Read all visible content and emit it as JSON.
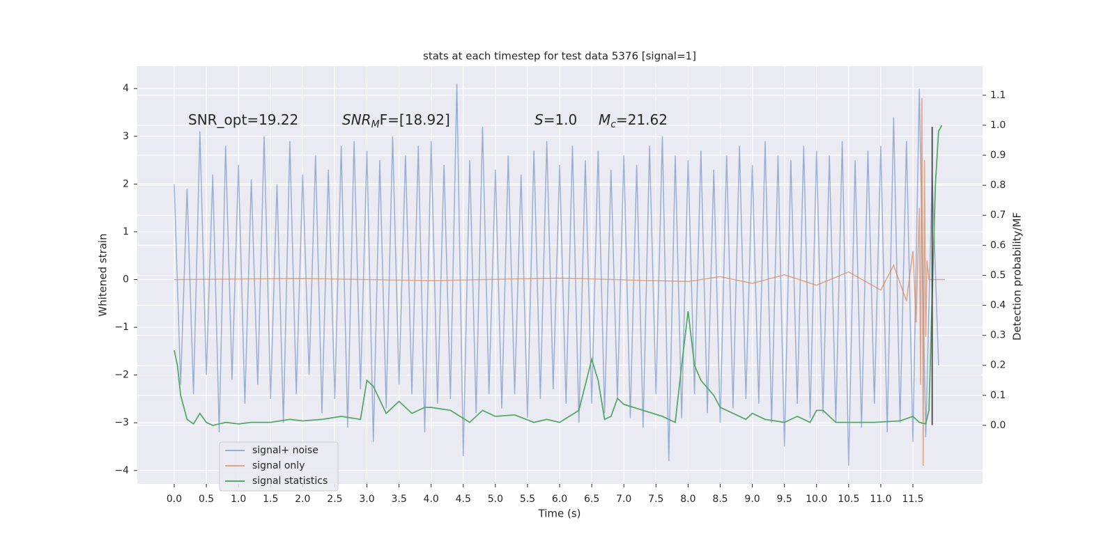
{
  "chart_data": {
    "type": "line",
    "title": "stats at each timestep for test data 5376 [signal=1]",
    "x_label": "Time (s)",
    "y_label": "Whitened strain",
    "y2_label": "Detection probability/MF",
    "xlim": [
      -0.575,
      12.585
    ],
    "ylim": [
      -4.28,
      4.47
    ],
    "y2lim": [
      -0.195,
      1.197
    ],
    "xticks": [
      {
        "value": 0,
        "label": "0.0"
      },
      {
        "value": 0.5,
        "label": "0.5"
      },
      {
        "value": 1,
        "label": "1.0"
      },
      {
        "value": 1.5,
        "label": "1.5"
      },
      {
        "value": 2,
        "label": "2.0"
      },
      {
        "value": 2.5,
        "label": "2.5"
      },
      {
        "value": 3,
        "label": "3.0"
      },
      {
        "value": 3.5,
        "label": "3.5"
      },
      {
        "value": 4,
        "label": "4.0"
      },
      {
        "value": 4.5,
        "label": "4.5"
      },
      {
        "value": 5,
        "label": "5.0"
      },
      {
        "value": 5.5,
        "label": "5.5"
      },
      {
        "value": 6,
        "label": "6.0"
      },
      {
        "value": 6.5,
        "label": "6.5"
      },
      {
        "value": 7,
        "label": "7.0"
      },
      {
        "value": 7.5,
        "label": "7.5"
      },
      {
        "value": 8,
        "label": "8.0"
      },
      {
        "value": 8.5,
        "label": "8.5"
      },
      {
        "value": 9,
        "label": "9.0"
      },
      {
        "value": 9.5,
        "label": "9.5"
      },
      {
        "value": 10,
        "label": "10.0"
      },
      {
        "value": 10.5,
        "label": "10.5"
      },
      {
        "value": 11,
        "label": "11.0"
      },
      {
        "value": 11.5,
        "label": "11.5"
      }
    ],
    "yticks": [
      {
        "value": -4,
        "label": "−4"
      },
      {
        "value": -3,
        "label": "−3"
      },
      {
        "value": -2,
        "label": "−2"
      },
      {
        "value": -1,
        "label": "−1"
      },
      0,
      1,
      2,
      3,
      4
    ],
    "y2ticks": [
      {
        "value": 0,
        "label": "0.0"
      },
      {
        "value": 0.1,
        "label": "0.1"
      },
      {
        "value": 0.2,
        "label": "0.2"
      },
      {
        "value": 0.3,
        "label": "0.3"
      },
      {
        "value": 0.4,
        "label": "0.4"
      },
      {
        "value": 0.5,
        "label": "0.5"
      },
      {
        "value": 0.6,
        "label": "0.6"
      },
      {
        "value": 0.7,
        "label": "0.7"
      },
      {
        "value": 0.8,
        "label": "0.8"
      },
      {
        "value": 0.9,
        "label": "0.9"
      },
      {
        "value": 1,
        "label": "1.0"
      },
      {
        "value": 1.1,
        "label": "1.1"
      }
    ],
    "grid": true,
    "legend_position": "lower left",
    "annotations": [
      [
        {
          "text": "SNR_opt=19.22",
          "style": "normal"
        }
      ],
      [
        {
          "text": "SNR",
          "style": "italic"
        },
        {
          "text": "M",
          "style": "sub"
        },
        {
          "text": "F=[18.92]",
          "style": "normal"
        }
      ],
      [
        {
          "text": "S",
          "style": "italic"
        },
        {
          "text": "=1.0",
          "style": "normal"
        }
      ],
      [
        {
          "text": "M",
          "style": "italic"
        },
        {
          "text": "c",
          "style": "sub"
        },
        {
          "text": "=21.62",
          "style": "normal"
        }
      ]
    ],
    "vlines": [
      {
        "x": 11.8,
        "ymin": -3.05,
        "ymax": 3.2,
        "color": "#444444"
      }
    ],
    "series": [
      {
        "name": "signal+ noise",
        "color": "#4c72b0",
        "opacity": 0.5,
        "x": [
          0,
          0.1,
          0.2,
          0.3,
          0.4,
          0.5,
          0.6,
          0.7,
          0.8,
          0.9,
          1,
          1.1,
          1.2,
          1.3,
          1.4,
          1.5,
          1.6,
          1.7,
          1.8,
          1.9,
          2,
          2.1,
          2.2,
          2.3,
          2.4,
          2.5,
          2.6,
          2.7,
          2.8,
          2.9,
          3,
          3.1,
          3.2,
          3.3,
          3.4,
          3.5,
          3.6,
          3.7,
          3.8,
          3.9,
          4,
          4.1,
          4.2,
          4.3,
          4.4,
          4.5,
          4.6,
          4.7,
          4.8,
          4.9,
          5,
          5.1,
          5.2,
          5.3,
          5.4,
          5.5,
          5.6,
          5.7,
          5.8,
          5.9,
          6,
          6.1,
          6.2,
          6.3,
          6.4,
          6.5,
          6.6,
          6.7,
          6.8,
          6.9,
          7,
          7.1,
          7.2,
          7.3,
          7.4,
          7.5,
          7.6,
          7.7,
          7.8,
          7.9,
          8,
          8.1,
          8.2,
          8.3,
          8.4,
          8.5,
          8.6,
          8.7,
          8.8,
          8.9,
          9,
          9.1,
          9.2,
          9.3,
          9.4,
          9.5,
          9.6,
          9.7,
          9.8,
          9.9,
          10,
          10.1,
          10.2,
          10.3,
          10.4,
          10.5,
          10.6,
          10.7,
          10.8,
          10.9,
          11,
          11.1,
          11.2,
          11.3,
          11.4,
          11.5,
          11.6,
          11.7,
          11.8,
          11.9
        ],
        "values": [
          2.0,
          -2.2,
          1.9,
          -2.4,
          3.1,
          -2.0,
          2.2,
          -3.2,
          2.8,
          -2.1,
          2.4,
          -2.6,
          2.1,
          -2.2,
          3.0,
          -2.5,
          2.0,
          -3.0,
          2.9,
          -2.4,
          2.2,
          -2.0,
          2.6,
          -2.8,
          2.3,
          -2.5,
          2.8,
          -3.1,
          2.9,
          -2.3,
          2.7,
          -3.4,
          2.5,
          -2.7,
          3.0,
          -2.2,
          2.6,
          -2.4,
          2.8,
          -3.2,
          2.9,
          -2.6,
          2.4,
          -2.5,
          4.1,
          -3.7,
          2.5,
          -2.8,
          3.2,
          -2.4,
          2.3,
          -2.7,
          2.6,
          -2.4,
          2.2,
          -2.9,
          2.7,
          -2.5,
          2.9,
          -2.3,
          2.4,
          -2.6,
          2.8,
          -3.0,
          2.5,
          -2.6,
          2.7,
          -2.8,
          2.3,
          -2.5,
          2.6,
          -2.9,
          2.4,
          -3.1,
          2.8,
          -2.4,
          3.0,
          -3.8,
          2.6,
          -2.9,
          2.5,
          -2.4,
          2.7,
          -2.8,
          2.3,
          -3.0,
          2.6,
          -2.7,
          2.8,
          -2.5,
          2.4,
          -2.6,
          2.9,
          -3.0,
          2.6,
          -3.5,
          2.5,
          -2.6,
          2.8,
          -2.9,
          2.7,
          -2.8,
          2.6,
          -3.0,
          2.9,
          -3.9,
          2.5,
          -3.1,
          2.7,
          -2.6,
          2.8,
          -3.2,
          3.4,
          -3.0,
          2.9,
          -3.4,
          4.0,
          -3.3,
          2.2,
          -1.8
        ]
      },
      {
        "name": "signal only",
        "color": "#dd8452",
        "opacity": 0.7,
        "x": [
          0,
          2,
          4,
          6,
          8,
          8.5,
          9,
          9.5,
          10,
          10.5,
          11,
          11.2,
          11.4,
          11.5,
          11.55,
          11.6,
          11.62,
          11.64,
          11.66,
          11.68,
          11.7,
          11.72,
          11.75,
          12.0
        ],
        "values": [
          0,
          0.02,
          -0.02,
          0.03,
          -0.04,
          0.06,
          -0.08,
          0.1,
          -0.12,
          0.16,
          -0.22,
          0.3,
          -0.45,
          0.6,
          -0.9,
          1.5,
          -2.2,
          3.8,
          -3.9,
          2.5,
          -1.2,
          0.4,
          0,
          0
        ]
      },
      {
        "name": "signal statistics",
        "color": "#55a868",
        "opacity": 1,
        "axis": "y2",
        "x": [
          0,
          0.05,
          0.1,
          0.2,
          0.3,
          0.4,
          0.5,
          0.6,
          0.8,
          1.0,
          1.2,
          1.5,
          1.8,
          2.0,
          2.3,
          2.6,
          2.9,
          3.0,
          3.1,
          3.3,
          3.5,
          3.7,
          3.9,
          4.0,
          4.3,
          4.6,
          4.8,
          5.0,
          5.3,
          5.6,
          5.8,
          6.0,
          6.3,
          6.5,
          6.6,
          6.7,
          6.8,
          6.9,
          7.0,
          7.3,
          7.6,
          7.8,
          7.9,
          8.0,
          8.1,
          8.2,
          8.4,
          8.5,
          8.9,
          9.0,
          9.2,
          9.5,
          9.7,
          9.9,
          10.0,
          10.1,
          10.3,
          10.5,
          10.9,
          11.3,
          11.5,
          11.6,
          11.7,
          11.75,
          11.85,
          11.9,
          11.95
        ],
        "values": [
          0.25,
          0.2,
          0.1,
          0.02,
          0.005,
          0.04,
          0.01,
          0.0,
          0.01,
          0.005,
          0.01,
          0.01,
          0.02,
          0.015,
          0.02,
          0.03,
          0.02,
          0.15,
          0.13,
          0.04,
          0.08,
          0.04,
          0.06,
          0.06,
          0.05,
          0.01,
          0.05,
          0.03,
          0.035,
          0.01,
          0.02,
          0.01,
          0.05,
          0.22,
          0.15,
          0.02,
          0.03,
          0.09,
          0.07,
          0.05,
          0.03,
          0.01,
          0.2,
          0.38,
          0.2,
          0.15,
          0.1,
          0.06,
          0.02,
          0.04,
          0.02,
          0.01,
          0.03,
          0.01,
          0.05,
          0.05,
          0.01,
          0.01,
          0.01,
          0.015,
          0.03,
          0.01,
          0.005,
          0.05,
          0.8,
          0.98,
          1.0
        ]
      }
    ]
  }
}
